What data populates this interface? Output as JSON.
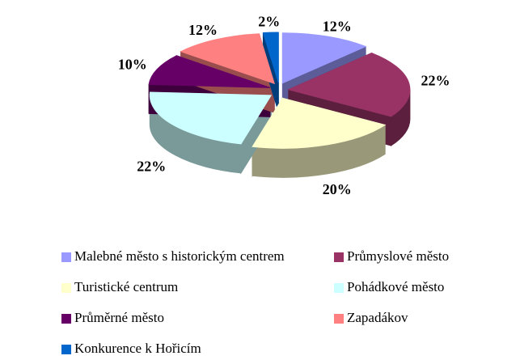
{
  "chart_data": {
    "type": "pie",
    "categories": [
      "Malebné město s historickým centrem",
      "Průmyslové město",
      "Turistické centrum",
      "Pohádkové město",
      "Průměrné město",
      "Zapadákov",
      "Konkurence k Hořicím"
    ],
    "values": [
      12,
      22,
      20,
      22,
      10,
      12,
      2
    ],
    "value_labels": [
      "12%",
      "22%",
      "20%",
      "22%",
      "10%",
      "12%",
      "2%"
    ],
    "colors": [
      "#9999ff",
      "#993366",
      "#ffffcc",
      "#ccffff",
      "#660066",
      "#ff8080",
      "#0066cc"
    ],
    "legend": "bottom"
  }
}
